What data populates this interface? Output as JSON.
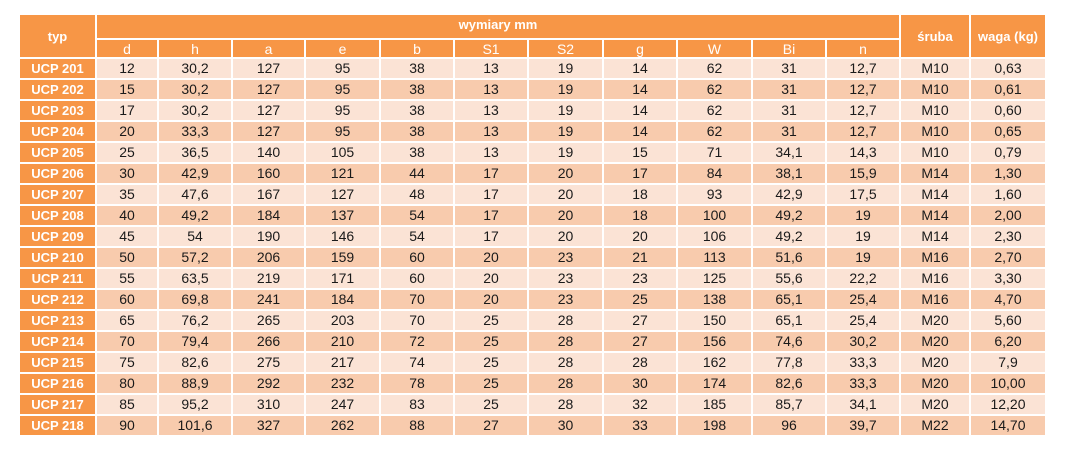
{
  "table": {
    "typ_header": "typ",
    "group_header": "wymiary mm",
    "sruba_header": "śruba",
    "waga_header": "waga (kg)",
    "dim_headers": [
      "d",
      "h",
      "a",
      "e",
      "b",
      "S1",
      "S2",
      "g",
      "W",
      "Bi",
      "n"
    ],
    "rows": [
      [
        "UCP 201",
        "12",
        "30,2",
        "127",
        "95",
        "38",
        "13",
        "19",
        "14",
        "62",
        "31",
        "12,7",
        "M10",
        "0,63"
      ],
      [
        "UCP 202",
        "15",
        "30,2",
        "127",
        "95",
        "38",
        "13",
        "19",
        "14",
        "62",
        "31",
        "12,7",
        "M10",
        "0,61"
      ],
      [
        "UCP 203",
        "17",
        "30,2",
        "127",
        "95",
        "38",
        "13",
        "19",
        "14",
        "62",
        "31",
        "12,7",
        "M10",
        "0,60"
      ],
      [
        "UCP 204",
        "20",
        "33,3",
        "127",
        "95",
        "38",
        "13",
        "19",
        "14",
        "62",
        "31",
        "12,7",
        "M10",
        "0,65"
      ],
      [
        "UCP 205",
        "25",
        "36,5",
        "140",
        "105",
        "38",
        "13",
        "19",
        "15",
        "71",
        "34,1",
        "14,3",
        "M10",
        "0,79"
      ],
      [
        "UCP 206",
        "30",
        "42,9",
        "160",
        "121",
        "44",
        "17",
        "20",
        "17",
        "84",
        "38,1",
        "15,9",
        "M14",
        "1,30"
      ],
      [
        "UCP 207",
        "35",
        "47,6",
        "167",
        "127",
        "48",
        "17",
        "20",
        "18",
        "93",
        "42,9",
        "17,5",
        "M14",
        "1,60"
      ],
      [
        "UCP 208",
        "40",
        "49,2",
        "184",
        "137",
        "54",
        "17",
        "20",
        "18",
        "100",
        "49,2",
        "19",
        "M14",
        "2,00"
      ],
      [
        "UCP 209",
        "45",
        "54",
        "190",
        "146",
        "54",
        "17",
        "20",
        "20",
        "106",
        "49,2",
        "19",
        "M14",
        "2,30"
      ],
      [
        "UCP 210",
        "50",
        "57,2",
        "206",
        "159",
        "60",
        "20",
        "23",
        "21",
        "113",
        "51,6",
        "19",
        "M16",
        "2,70"
      ],
      [
        "UCP 211",
        "55",
        "63,5",
        "219",
        "171",
        "60",
        "20",
        "23",
        "23",
        "125",
        "55,6",
        "22,2",
        "M16",
        "3,30"
      ],
      [
        "UCP 212",
        "60",
        "69,8",
        "241",
        "184",
        "70",
        "20",
        "23",
        "25",
        "138",
        "65,1",
        "25,4",
        "M16",
        "4,70"
      ],
      [
        "UCP 213",
        "65",
        "76,2",
        "265",
        "203",
        "70",
        "25",
        "28",
        "27",
        "150",
        "65,1",
        "25,4",
        "M20",
        "5,60"
      ],
      [
        "UCP 214",
        "70",
        "79,4",
        "266",
        "210",
        "72",
        "25",
        "28",
        "27",
        "156",
        "74,6",
        "30,2",
        "M20",
        "6,20"
      ],
      [
        "UCP 215",
        "75",
        "82,6",
        "275",
        "217",
        "74",
        "25",
        "28",
        "28",
        "162",
        "77,8",
        "33,3",
        "M20",
        "7,9"
      ],
      [
        "UCP 216",
        "80",
        "88,9",
        "292",
        "232",
        "78",
        "25",
        "28",
        "30",
        "174",
        "82,6",
        "33,3",
        "M20",
        "10,00"
      ],
      [
        "UCP 217",
        "85",
        "95,2",
        "310",
        "247",
        "83",
        "25",
        "28",
        "32",
        "185",
        "85,7",
        "34,1",
        "M20",
        "12,20"
      ],
      [
        "UCP 218",
        "90",
        "101,6",
        "327",
        "262",
        "88",
        "27",
        "30",
        "33",
        "198",
        "96",
        "39,7",
        "M22",
        "14,70"
      ]
    ]
  }
}
